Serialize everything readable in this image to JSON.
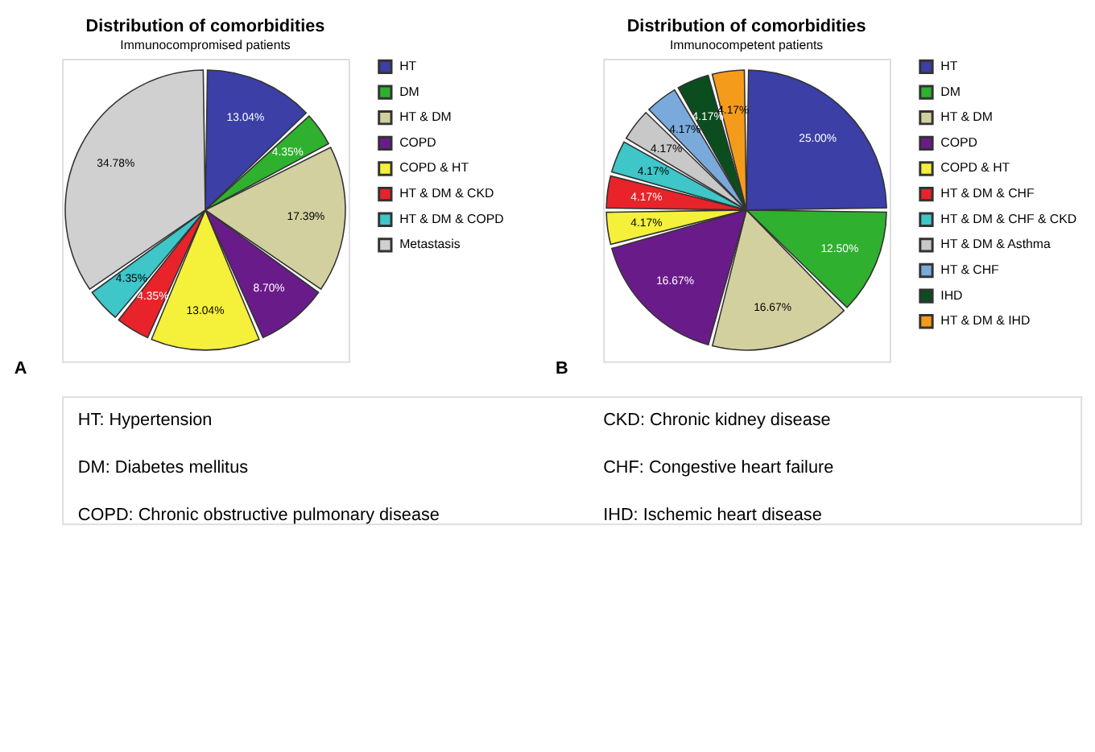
{
  "chart_data": [
    {
      "type": "pie",
      "title": "Distribution of comorbidities",
      "subtitle": "Immunocompromised patients",
      "legend": "top right",
      "annotations": [
        "A",
        "HT: Hypertension",
        "CKD: Chronic kidney disease",
        "DM: Diabetes mellitus",
        "CHF: Congestive heart failure",
        "COPD: Chronic obstructive pulmonary disease",
        "IHD: Ischemic heart disease"
      ],
      "categories": [
        "HT",
        "DM",
        "HT & DM",
        "COPD",
        "COPD & HT",
        "HT & DM & CKD",
        "HT & DM & COPD",
        "Metastasis"
      ],
      "values": [
        13.04,
        4.35,
        17.39,
        8.7,
        13.04,
        4.35,
        4.35,
        34.78
      ],
      "value_labels": [
        "13.04%",
        "4.35%",
        "17.39%",
        "8.70%",
        "13.04%",
        "4.35%",
        "4.35%",
        "34.78%"
      ],
      "colors": [
        "#3b3fa6",
        "#2fb02f",
        "#d3d0a0",
        "#6a1b8a",
        "#f5f03a",
        "#e8232a",
        "#3ec6c9",
        "#d0d0d0"
      ]
    },
    {
      "type": "pie",
      "title": "Distribution of comorbidities",
      "subtitle": "Immunocompetent patients",
      "legend": "top right",
      "annotations": [
        "B"
      ],
      "categories": [
        "HT",
        "DM",
        "HT & DM",
        "COPD",
        "COPD & HT",
        "HT & DM & CHF",
        "HT & DM & CHF & CKD",
        "HT & DM & Asthma",
        "HT & CHF",
        "IHD",
        "HT & DM & IHD"
      ],
      "values": [
        25.0,
        12.5,
        16.67,
        16.67,
        4.17,
        4.17,
        4.17,
        4.17,
        4.17,
        4.17,
        4.17
      ],
      "value_labels": [
        "25.00%",
        "12.50%",
        "16.67%",
        "16.67%",
        "4.17%",
        "4.17%",
        "4.17%",
        "4.17%",
        "4.17%",
        "4.17%",
        "4.17%"
      ],
      "colors": [
        "#3b3fa6",
        "#2fb02f",
        "#d3d0a0",
        "#6a1b8a",
        "#f5f03a",
        "#e8232a",
        "#3ec6c9",
        "#c8c8c8",
        "#7aa9dc",
        "#0b4d1e",
        "#f59b1b"
      ]
    }
  ]
}
